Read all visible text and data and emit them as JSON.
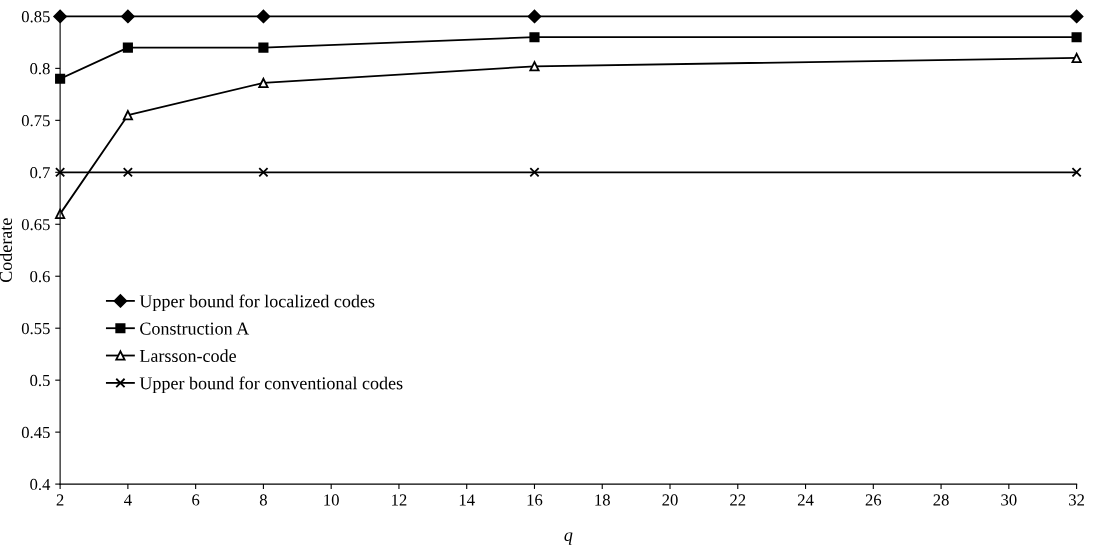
{
  "chart_data": {
    "type": "line",
    "xlabel": "q",
    "ylabel": "Coderate",
    "x": [
      2,
      4,
      8,
      16,
      32
    ],
    "series": [
      {
        "name": "Upper bound for localized codes",
        "color": "#000000",
        "marker": "diamond",
        "values": [
          0.85,
          0.85,
          0.85,
          0.85,
          0.85
        ]
      },
      {
        "name": "Construction A",
        "color": "#000000",
        "marker": "square",
        "values": [
          0.79,
          0.82,
          0.82,
          0.83,
          0.83
        ]
      },
      {
        "name": "Larsson-code",
        "color": "#000000",
        "marker": "triangle",
        "values": [
          0.66,
          0.755,
          0.786,
          0.802,
          0.81
        ]
      },
      {
        "name": "Upper bound for conventional codes",
        "color": "#000000",
        "marker": "cross",
        "values": [
          0.7,
          0.7,
          0.7,
          0.7,
          0.7
        ]
      }
    ],
    "xlim": [
      2,
      32
    ],
    "xticks": [
      2,
      4,
      6,
      8,
      10,
      12,
      14,
      16,
      18,
      20,
      22,
      24,
      26,
      28,
      30,
      32
    ],
    "ylim": [
      0.4,
      0.85
    ],
    "yticks": [
      0.4,
      0.45,
      0.5,
      0.55,
      0.6,
      0.65,
      0.7,
      0.75,
      0.8,
      0.85
    ],
    "grid": false,
    "legend": "left",
    "line_style": "solid"
  }
}
